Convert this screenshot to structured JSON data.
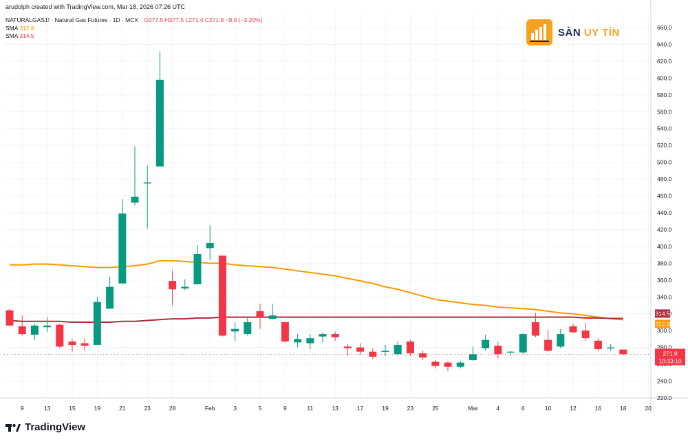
{
  "header": {
    "credit": "arudolph created with TradingView.com, Mar 18, 2026 07:26 UTC",
    "symbol_line": "NATURALGAS1! · Natural Gas Futures · 1D · MCX",
    "ohlc": "O277.5 H277.5 L271.4 C271.9 −9.0 (−3.20%)",
    "sma_fast_label": "SMA",
    "sma_fast_value": "312.8",
    "sma_slow_label": "SMA",
    "sma_slow_value": "314.5"
  },
  "watermark": {
    "name_part1": "SÀN",
    "name_part2": "UY TÍN"
  },
  "footer": {
    "brand": "TradingView"
  },
  "colors": {
    "up": "#089981",
    "down": "#f23645",
    "sma_fast": "#ff9800",
    "sma_slow": "#b2283a",
    "grid": "#f0f3fa"
  },
  "chart_data": {
    "type": "candlestick",
    "title": "NATURALGAS1! · Natural Gas Futures · 1D · MCX",
    "ylim": [
      210,
      670
    ],
    "y_ticks": [
      220.0,
      240.0,
      260.0,
      280.0,
      300.0,
      320.0,
      340.0,
      360.0,
      380.0,
      400.0,
      420.0,
      440.0,
      460.0,
      480.0,
      500.0,
      520.0,
      540.0,
      560.0,
      580.0,
      600.0,
      620.0,
      640.0,
      660.0
    ],
    "x_ticks": [
      {
        "label": "9",
        "index": 1
      },
      {
        "label": "13",
        "index": 3
      },
      {
        "label": "15",
        "index": 5
      },
      {
        "label": "19",
        "index": 7
      },
      {
        "label": "21",
        "index": 9
      },
      {
        "label": "23",
        "index": 11
      },
      {
        "label": "28",
        "index": 13
      },
      {
        "label": "Feb",
        "index": 16
      },
      {
        "label": "3",
        "index": 18
      },
      {
        "label": "5",
        "index": 20
      },
      {
        "label": "9",
        "index": 22
      },
      {
        "label": "11",
        "index": 24
      },
      {
        "label": "13",
        "index": 26
      },
      {
        "label": "17",
        "index": 28
      },
      {
        "label": "19",
        "index": 30
      },
      {
        "label": "23",
        "index": 32
      },
      {
        "label": "25",
        "index": 34
      },
      {
        "label": "Mar",
        "index": 37
      },
      {
        "label": "4",
        "index": 39
      },
      {
        "label": "6",
        "index": 41
      },
      {
        "label": "10",
        "index": 43
      },
      {
        "label": "12",
        "index": 45
      },
      {
        "label": "16",
        "index": 47
      },
      {
        "label": "18",
        "index": 49
      },
      {
        "label": "20",
        "index": 51
      }
    ],
    "series": [
      {
        "name": "Natural Gas Futures",
        "type": "candlestick",
        "candles": [
          {
            "o": 324,
            "h": 326,
            "l": 306,
            "c": 306
          },
          {
            "o": 305,
            "h": 318,
            "l": 294,
            "c": 296
          },
          {
            "o": 295,
            "h": 308,
            "l": 289,
            "c": 306
          },
          {
            "o": 304,
            "h": 316,
            "l": 298,
            "c": 306
          },
          {
            "o": 307,
            "h": 308,
            "l": 279,
            "c": 281
          },
          {
            "o": 287,
            "h": 290,
            "l": 275,
            "c": 283
          },
          {
            "o": 285,
            "h": 291,
            "l": 276,
            "c": 282
          },
          {
            "o": 283,
            "h": 340,
            "l": 283,
            "c": 334
          },
          {
            "o": 326,
            "h": 364,
            "l": 326,
            "c": 352
          },
          {
            "o": 356,
            "h": 456,
            "l": 356,
            "c": 439
          },
          {
            "o": 452,
            "h": 519,
            "l": 449,
            "c": 459
          },
          {
            "o": 476,
            "h": 496,
            "l": 421,
            "c": 476
          },
          {
            "o": 495,
            "h": 632,
            "l": 495,
            "c": 598
          },
          {
            "o": 359,
            "h": 371,
            "l": 330,
            "c": 349
          },
          {
            "o": 350,
            "h": 361,
            "l": 348,
            "c": 352
          },
          {
            "o": 355,
            "h": 402,
            "l": 355,
            "c": 391
          },
          {
            "o": 398,
            "h": 425,
            "l": 384,
            "c": 404
          },
          {
            "o": 389,
            "h": 389,
            "l": 293,
            "c": 294
          },
          {
            "o": 299,
            "h": 310,
            "l": 288,
            "c": 302
          },
          {
            "o": 296,
            "h": 316,
            "l": 294,
            "c": 310
          },
          {
            "o": 323,
            "h": 332,
            "l": 302,
            "c": 316
          },
          {
            "o": 314,
            "h": 332,
            "l": 313,
            "c": 318
          },
          {
            "o": 310,
            "h": 310,
            "l": 286,
            "c": 287
          },
          {
            "o": 286,
            "h": 296,
            "l": 280,
            "c": 290
          },
          {
            "o": 285,
            "h": 296,
            "l": 278,
            "c": 291
          },
          {
            "o": 293,
            "h": 298,
            "l": 286,
            "c": 296
          },
          {
            "o": 296,
            "h": 299,
            "l": 288,
            "c": 292
          },
          {
            "o": 281,
            "h": 284,
            "l": 270,
            "c": 279
          },
          {
            "o": 280,
            "h": 285,
            "l": 271,
            "c": 275
          },
          {
            "o": 275,
            "h": 279,
            "l": 266,
            "c": 269
          },
          {
            "o": 276,
            "h": 283,
            "l": 270,
            "c": 276
          },
          {
            "o": 272,
            "h": 287,
            "l": 270,
            "c": 283
          },
          {
            "o": 287,
            "h": 289,
            "l": 270,
            "c": 273
          },
          {
            "o": 273,
            "h": 276,
            "l": 265,
            "c": 268
          },
          {
            "o": 263,
            "h": 265,
            "l": 255,
            "c": 258
          },
          {
            "o": 262,
            "h": 264,
            "l": 252,
            "c": 257
          },
          {
            "o": 257,
            "h": 264,
            "l": 255,
            "c": 262
          },
          {
            "o": 265,
            "h": 281,
            "l": 264,
            "c": 272
          },
          {
            "o": 279,
            "h": 295,
            "l": 276,
            "c": 289
          },
          {
            "o": 282,
            "h": 287,
            "l": 267,
            "c": 272
          },
          {
            "o": 274,
            "h": 276,
            "l": 270,
            "c": 275
          },
          {
            "o": 274,
            "h": 297,
            "l": 272,
            "c": 296
          },
          {
            "o": 310,
            "h": 321,
            "l": 292,
            "c": 294
          },
          {
            "o": 289,
            "h": 301,
            "l": 275,
            "c": 276
          },
          {
            "o": 281,
            "h": 302,
            "l": 279,
            "c": 296
          },
          {
            "o": 305,
            "h": 308,
            "l": 297,
            "c": 298
          },
          {
            "o": 300,
            "h": 309,
            "l": 288,
            "c": 291
          },
          {
            "o": 288,
            "h": 291,
            "l": 276,
            "c": 278
          },
          {
            "o": 279,
            "h": 284,
            "l": 276,
            "c": 280
          },
          {
            "o": 277.5,
            "h": 277.5,
            "l": 271.4,
            "c": 271.9
          }
        ]
      },
      {
        "name": "SMA",
        "type": "line",
        "color": "orange",
        "values": [
          378,
          378,
          379,
          379,
          378,
          377,
          376,
          375,
          375,
          376,
          377,
          379,
          383,
          383,
          382,
          381,
          380,
          380,
          378,
          377,
          376,
          375,
          373,
          371,
          369,
          367,
          365,
          362,
          359,
          356,
          352,
          349,
          345,
          341,
          337,
          335,
          333,
          331,
          330,
          328,
          327,
          326,
          325,
          323,
          321,
          320,
          318,
          316,
          314,
          312.8
        ]
      },
      {
        "name": "SMA",
        "type": "line",
        "color": "dark-red",
        "values": [
          312,
          311,
          311,
          311,
          311,
          310,
          310,
          310,
          310,
          311,
          311,
          312,
          313,
          314,
          314,
          315,
          315,
          316,
          316,
          316,
          316,
          316,
          316,
          316,
          316,
          316,
          316,
          316,
          316,
          316,
          316,
          316,
          316,
          316,
          316,
          316,
          316,
          316,
          316,
          316,
          316,
          316,
          316,
          316,
          316,
          316,
          315,
          315,
          314.5,
          314.5
        ]
      }
    ],
    "price_labels": [
      {
        "name": "sma-slow-label",
        "value": "314.5"
      },
      {
        "name": "sma-fast-label",
        "value": "312.8"
      },
      {
        "name": "last-price-label",
        "value": "271.9"
      }
    ],
    "countdown": "10:33:10"
  }
}
